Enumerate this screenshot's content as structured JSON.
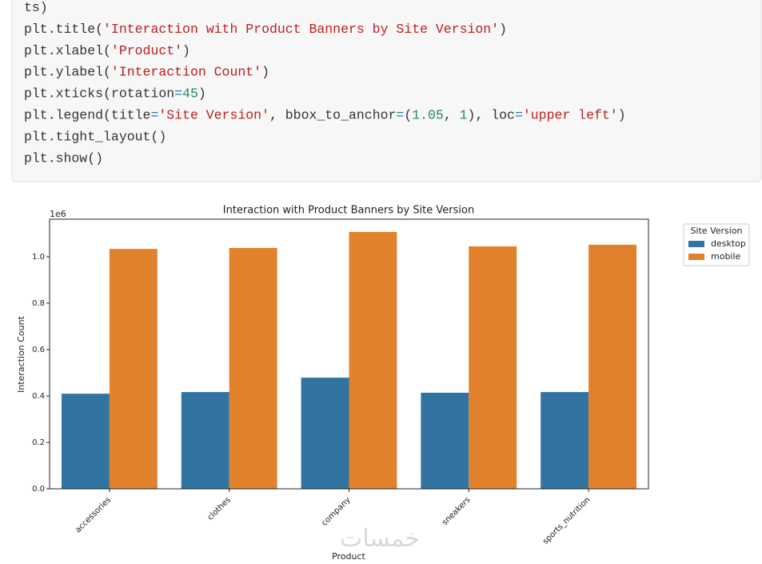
{
  "code": {
    "lines": [
      [
        {
          "text": "ts)",
          "color": "#333333"
        }
      ],
      [
        {
          "text": "plt.title(",
          "color": "#333333"
        },
        {
          "text": "'Interaction with Product Banners by Site Version'",
          "color": "#ba2121"
        },
        {
          "text": ")",
          "color": "#333333"
        }
      ],
      [
        {
          "text": "plt.xlabel(",
          "color": "#333333"
        },
        {
          "text": "'Product'",
          "color": "#ba2121"
        },
        {
          "text": ")",
          "color": "#333333"
        }
      ],
      [
        {
          "text": "plt.ylabel(",
          "color": "#333333"
        },
        {
          "text": "'Interaction Count'",
          "color": "#ba2121"
        },
        {
          "text": ")",
          "color": "#333333"
        }
      ],
      [
        {
          "text": "plt.xticks(rotation",
          "color": "#333333"
        },
        {
          "text": "=",
          "color": "#2a7fa0"
        },
        {
          "text": "45",
          "color": "#1e8a6e"
        },
        {
          "text": ")",
          "color": "#333333"
        }
      ],
      [
        {
          "text": "plt.legend(title",
          "color": "#333333"
        },
        {
          "text": "=",
          "color": "#2a7fa0"
        },
        {
          "text": "'Site Version'",
          "color": "#ba2121"
        },
        {
          "text": ", bbox_to_anchor",
          "color": "#333333"
        },
        {
          "text": "=",
          "color": "#2a7fa0"
        },
        {
          "text": "(",
          "color": "#333333"
        },
        {
          "text": "1.05",
          "color": "#1e8a6e"
        },
        {
          "text": ", ",
          "color": "#333333"
        },
        {
          "text": "1",
          "color": "#1e8a6e"
        },
        {
          "text": "), loc",
          "color": "#333333"
        },
        {
          "text": "=",
          "color": "#2a7fa0"
        },
        {
          "text": "'upper left'",
          "color": "#ba2121"
        },
        {
          "text": ")",
          "color": "#333333"
        }
      ],
      [
        {
          "text": "plt.tight_layout()",
          "color": "#333333"
        }
      ],
      [
        {
          "text": "plt.show()",
          "color": "#333333"
        }
      ]
    ]
  },
  "chart_data": {
    "type": "bar",
    "title": "Interaction with Product Banners by Site Version",
    "x_label": "Product",
    "y_label": "Interaction Count",
    "y_offset_label": "1e6",
    "categories": [
      "accessories",
      "clothes",
      "company",
      "sneakers",
      "sports_nutrition"
    ],
    "series": [
      {
        "name": "desktop",
        "color": "#3274a1",
        "values": [
          0.41,
          0.417,
          0.479,
          0.414,
          0.417
        ]
      },
      {
        "name": "mobile",
        "color": "#e1812c",
        "values": [
          1.034,
          1.038,
          1.107,
          1.045,
          1.052
        ]
      }
    ],
    "ylim": [
      0,
      1.162
    ],
    "yticks": [
      {
        "value": 0,
        "label": "0.0"
      },
      0.2,
      0.4,
      0.6,
      0.8,
      {
        "value": 1,
        "label": "1.0"
      }
    ],
    "legend_title": "Site Version",
    "legend": "outside upper right",
    "grid": false
  },
  "watermark": "خمسات"
}
